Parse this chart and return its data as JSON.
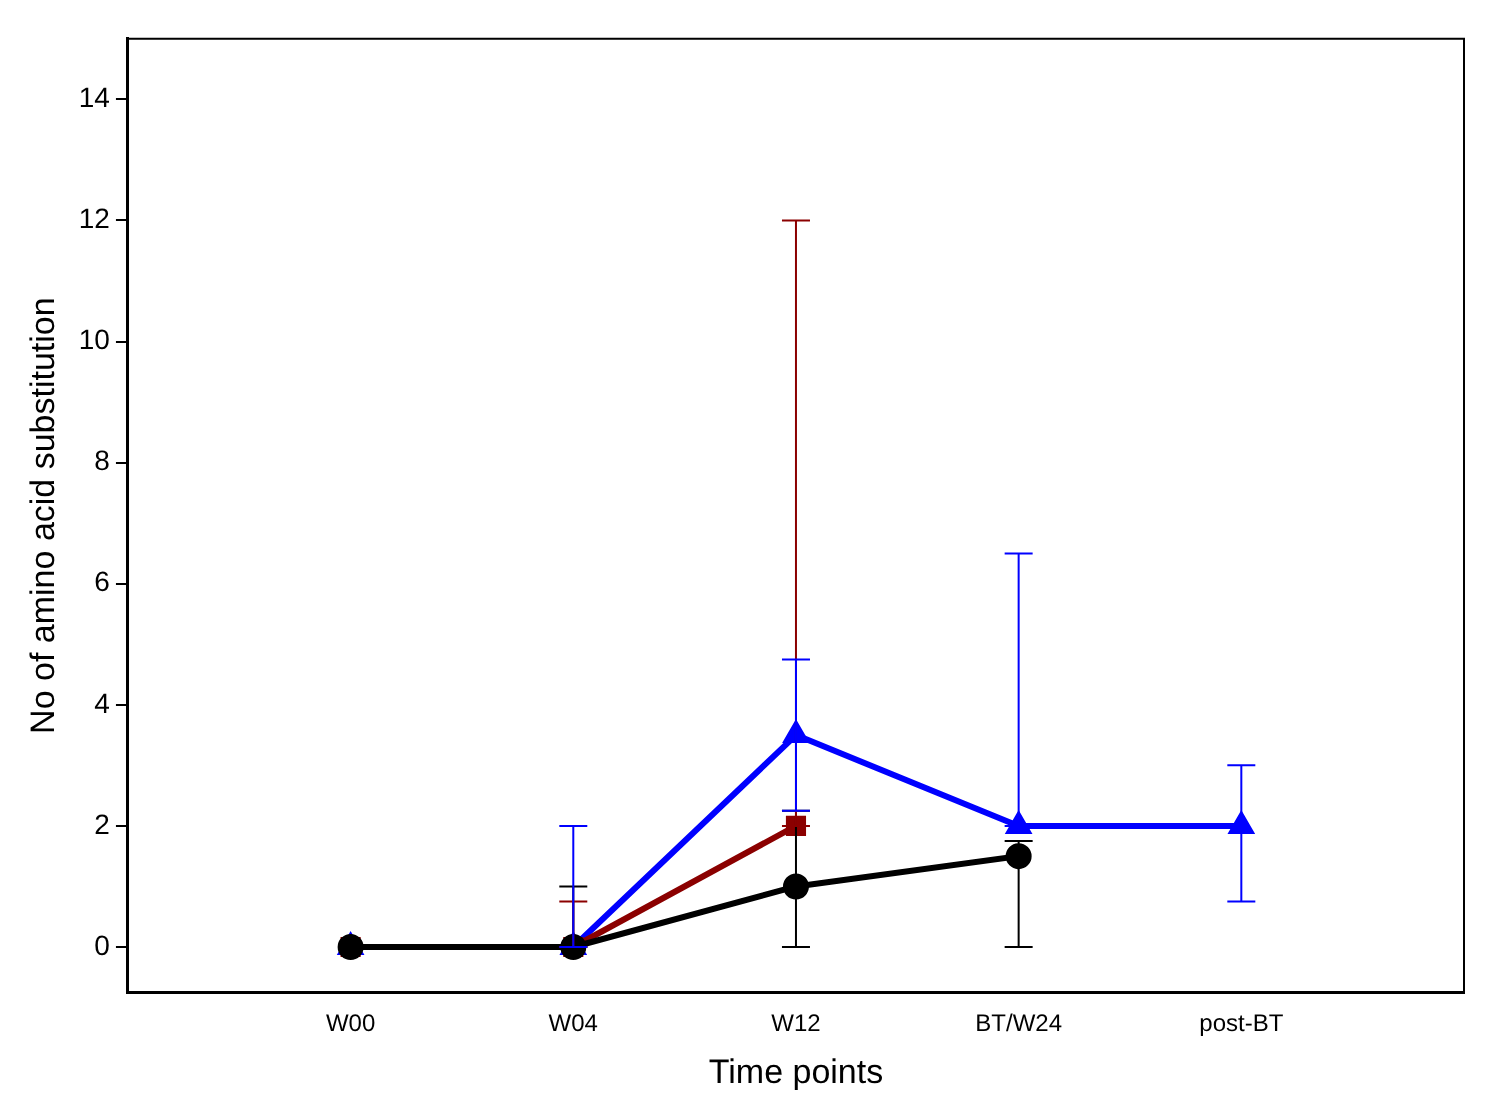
{
  "chart_data": {
    "type": "line",
    "xlabel": "Time points",
    "ylabel": "No of amino acid substitution",
    "categories": [
      "W00",
      "W04",
      "W12",
      "BT/W24",
      "post-BT"
    ],
    "ylim": [
      -0.75,
      15
    ],
    "yticks": [
      0,
      2,
      4,
      6,
      8,
      10,
      12,
      14
    ],
    "grid": false,
    "legend": false,
    "series": [
      {
        "color": "#000000",
        "marker": "circle",
        "values": [
          0,
          0,
          1,
          1.5,
          null
        ],
        "errors": [
          null,
          [
            0,
            1
          ],
          [
            0,
            2.25
          ],
          [
            0,
            1.75
          ],
          null
        ]
      },
      {
        "color": "#8b0000",
        "marker": "square",
        "values": [
          0,
          0,
          2,
          null,
          null
        ],
        "errors": [
          null,
          [
            0,
            0.75
          ],
          [
            2,
            12
          ],
          null,
          null
        ]
      },
      {
        "color": "#0000ff",
        "marker": "triangle",
        "values": [
          0,
          0,
          3.5,
          2,
          2
        ],
        "errors": [
          null,
          [
            0,
            2
          ],
          [
            2.25,
            4.75
          ],
          [
            2,
            6.5
          ],
          [
            0.75,
            3
          ]
        ]
      }
    ]
  }
}
